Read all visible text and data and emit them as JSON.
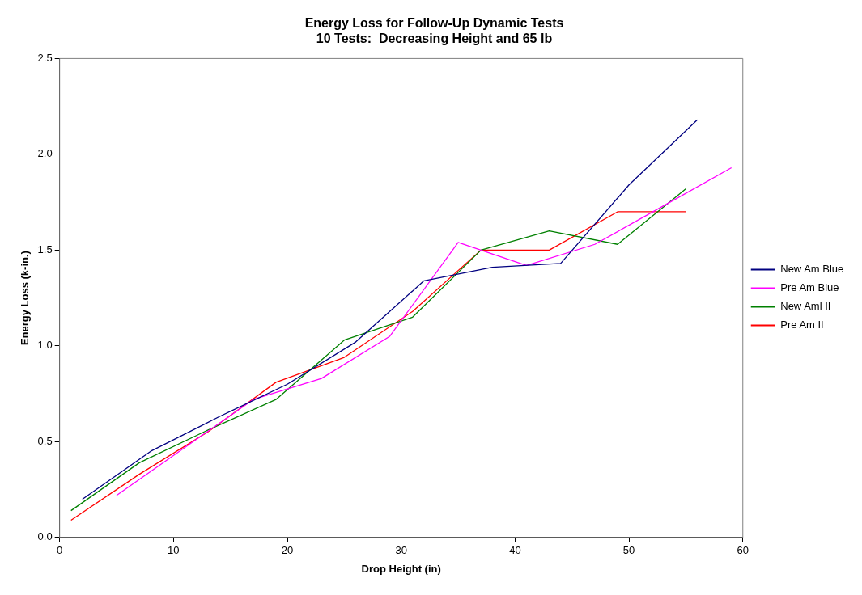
{
  "chart_data": {
    "type": "line",
    "title": [
      "Energy Loss for Follow-Up Dynamic Tests",
      "10 Tests:  Decreasing Height and 65 lb"
    ],
    "xlabel": "Drop Height (in)",
    "ylabel": "Energy Loss (k-in.)",
    "xlim": [
      0,
      60
    ],
    "xticks": [
      0,
      10,
      20,
      30,
      40,
      50,
      60
    ],
    "ylim": [
      0,
      2.5
    ],
    "yticks": [
      {
        "value": 0,
        "label": "0.0"
      },
      {
        "value": 0.5,
        "label": "0.5"
      },
      {
        "value": 1,
        "label": "1.0"
      },
      {
        "value": 1.5,
        "label": "1.5"
      },
      {
        "value": 2,
        "label": "2.0"
      },
      {
        "value": 2.5,
        "label": "2.5"
      }
    ],
    "grid": false,
    "legend": "right",
    "marker": "none",
    "line_style": "solid",
    "series": [
      {
        "name": "New Am Blue",
        "color": "#000080",
        "x": [
          2,
          8,
          14,
          20,
          26,
          32,
          38,
          44,
          50,
          56
        ],
        "values": [
          0.2,
          0.45,
          0.63,
          0.8,
          1.02,
          1.34,
          1.41,
          1.43,
          1.84,
          2.18
        ]
      },
      {
        "name": "Pre Am Blue",
        "color": "#ff00ff",
        "x": [
          5,
          11,
          17,
          23,
          29,
          35,
          41,
          47,
          53,
          59
        ],
        "values": [
          0.22,
          0.47,
          0.72,
          0.83,
          1.05,
          1.54,
          1.42,
          1.53,
          1.73,
          1.93
        ]
      },
      {
        "name": "New Aml II",
        "color": "#008000",
        "x": [
          1,
          7,
          13,
          19,
          25,
          31,
          37,
          43,
          49,
          55
        ],
        "values": [
          0.14,
          0.39,
          0.56,
          0.72,
          1.03,
          1.15,
          1.5,
          1.6,
          1.53,
          1.82
        ]
      },
      {
        "name": "Pre Am II",
        "color": "#ff0000",
        "x": [
          1,
          7,
          13,
          19,
          25,
          31,
          37,
          43,
          49,
          55
        ],
        "values": [
          0.09,
          0.33,
          0.55,
          0.81,
          0.94,
          1.18,
          1.5,
          1.5,
          1.7,
          1.7
        ]
      }
    ]
  }
}
